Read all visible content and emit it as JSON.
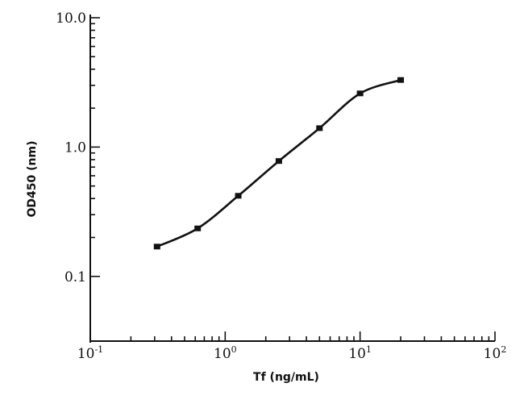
{
  "chart_data": {
    "type": "line",
    "title": "",
    "xlabel": "Tf (ng/mL)",
    "ylabel": "OD450 (nm)",
    "x_scale": "log",
    "y_scale": "log",
    "xlim": [
      0.1,
      100
    ],
    "ylim": [
      0.0316,
      10
    ],
    "grid": false,
    "x_ticks": [
      {
        "value": 0.1,
        "base": "10",
        "exp": "-1"
      },
      {
        "value": 1,
        "base": "10",
        "exp": "0"
      },
      {
        "value": 10,
        "base": "10",
        "exp": "1"
      },
      {
        "value": 100,
        "base": "10",
        "exp": "2"
      }
    ],
    "y_ticks": [
      {
        "value": 0.1,
        "label": "0.1"
      },
      {
        "value": 1,
        "label": "1.0"
      },
      {
        "value": 10,
        "label": "10.0"
      }
    ],
    "series": [
      {
        "x": [
          0.3125,
          0.625,
          1.25,
          2.5,
          5,
          10,
          20
        ],
        "y": [
          0.17,
          0.235,
          0.42,
          0.78,
          1.4,
          2.6,
          3.3
        ]
      }
    ],
    "marker_color": "#111111"
  }
}
